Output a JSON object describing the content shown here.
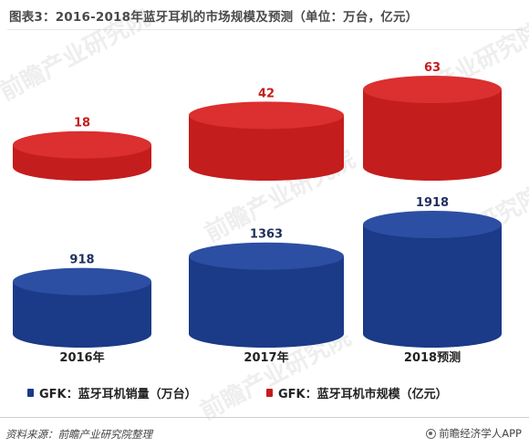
{
  "title": "图表3：2016-2018年蓝牙耳机的市场规模及预测（单位：万台，亿元）",
  "colors": {
    "sales": "#1b3a87",
    "sales_top": "#2c4fa3",
    "scale": "#c41d1d",
    "scale_top": "#dc2f2f",
    "value_sales": "#1f2f5e",
    "value_scale": "#c41d1d"
  },
  "chart_data": {
    "type": "bar",
    "style": "3d-cylinder",
    "categories": [
      "2016年",
      "2017年",
      "2018预测"
    ],
    "series": [
      {
        "name": "GFK：蓝牙耳机销量（万台）",
        "values": [
          918,
          1363,
          1918
        ]
      },
      {
        "name": "GFK：蓝牙耳机市规模（亿元）",
        "values": [
          18,
          42,
          63
        ]
      }
    ],
    "value_labels": {
      "sales": [
        "918",
        "1363",
        "1918"
      ],
      "scale": [
        "18",
        "42",
        "63"
      ]
    },
    "legend_position": "bottom",
    "grid": false
  },
  "legend": {
    "sales_label": "GFK：蓝牙耳机销量（万台）",
    "scale_label": "GFK：蓝牙耳机市规模（亿元）"
  },
  "footer": {
    "source": "资料来源：前瞻产业研究院整理",
    "brand": "前瞻经济学人APP"
  },
  "watermark_text": "前瞻产业研究院"
}
